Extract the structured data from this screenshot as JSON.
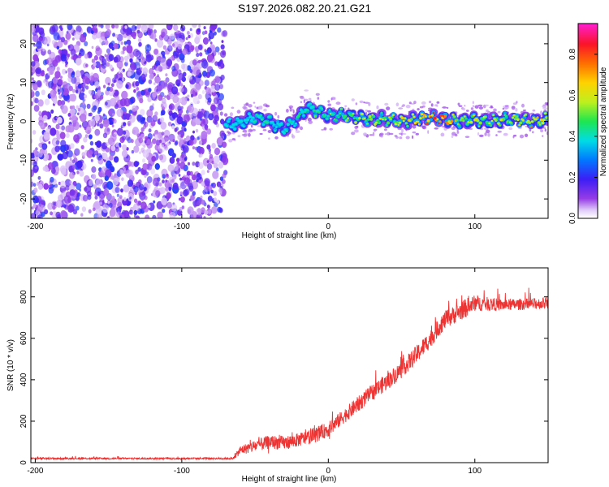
{
  "title": "S197.2026.082.20.21.G21",
  "chart_data": [
    {
      "type": "heatmap",
      "xlabel": "Height of straight line (km)",
      "ylabel": "Frequency (Hz)",
      "xlim": [
        -203,
        150
      ],
      "ylim": [
        -25,
        25
      ],
      "xticks": [
        -200,
        -100,
        0,
        100
      ],
      "xtick_labels": [
        "-200",
        "-100",
        "0",
        "100"
      ],
      "yticks": [
        -20,
        -10,
        0,
        10,
        20
      ],
      "ytick_labels": [
        "-20",
        "-10",
        "0",
        "10",
        "20"
      ],
      "noise_region_x": [
        -203,
        -70
      ],
      "tone_region_x": [
        -70,
        150
      ],
      "tone_track": {
        "x": [
          -70,
          -60,
          -50,
          -40,
          -30,
          -20,
          -15,
          -10,
          0,
          10,
          20,
          30,
          40,
          50,
          60,
          70,
          80,
          90,
          100,
          110,
          120,
          130,
          140,
          150
        ],
        "freq": [
          -1,
          -0.5,
          1,
          0,
          -2,
          1,
          3.5,
          3,
          1.5,
          1.5,
          1,
          0.5,
          0.5,
          0,
          0.5,
          1,
          0.5,
          0,
          0.5,
          0,
          0.5,
          0.5,
          0,
          0.5
        ],
        "amplitude": [
          0.35,
          0.35,
          0.45,
          0.45,
          0.4,
          0.45,
          0.45,
          0.5,
          0.55,
          0.55,
          0.55,
          0.6,
          0.6,
          0.65,
          0.7,
          0.85,
          0.85,
          0.65,
          0.65,
          0.6,
          0.6,
          0.7,
          0.75,
          0.7
        ]
      },
      "colorbar": {
        "label": "Normalized spectral amplitude",
        "range": [
          0,
          0.95
        ],
        "ticks": [
          0,
          0.2,
          0.4,
          0.6,
          0.8
        ],
        "tick_labels": [
          "0.0",
          "0.2",
          "0.4",
          "0.6",
          "0.8"
        ]
      }
    },
    {
      "type": "line",
      "xlabel": "Height of straight line (km)",
      "ylabel": "SNR (10 * v/v)",
      "xlim": [
        -203,
        150
      ],
      "ylim": [
        0,
        940
      ],
      "xticks": [
        -200,
        -100,
        0,
        100
      ],
      "xtick_labels": [
        "-200",
        "-100",
        "0",
        "100"
      ],
      "yticks": [
        0,
        200,
        400,
        600,
        800
      ],
      "ytick_labels": [
        "0",
        "200",
        "400",
        "600",
        "800"
      ],
      "series": [
        {
          "name": "SNR",
          "color": "#ee3333",
          "x": [
            -203,
            -150,
            -100,
            -70,
            -65,
            -60,
            -50,
            -40,
            -30,
            -20,
            -10,
            0,
            10,
            20,
            30,
            40,
            50,
            60,
            70,
            75,
            80,
            90,
            95,
            100,
            120,
            150
          ],
          "values": [
            20,
            20,
            20,
            20,
            20,
            60,
            80,
            100,
            95,
            110,
            130,
            160,
            220,
            280,
            340,
            390,
            450,
            520,
            600,
            650,
            690,
            730,
            750,
            770,
            760,
            770
          ],
          "noise_amplitude": [
            8,
            8,
            8,
            8,
            10,
            40,
            55,
            60,
            60,
            60,
            65,
            65,
            65,
            70,
            70,
            75,
            75,
            80,
            80,
            80,
            80,
            80,
            85,
            70,
            50,
            50
          ]
        }
      ]
    }
  ]
}
